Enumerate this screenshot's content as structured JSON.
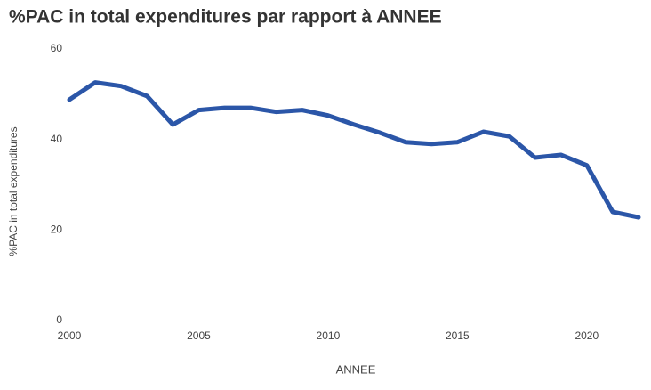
{
  "chart_data": {
    "type": "line",
    "title": "%PAC in total expenditures par rapport à ANNEE",
    "x_label": "ANNEE",
    "y_label": "%PAC in total expenditures",
    "x": [
      2000,
      2001,
      2002,
      2003,
      2004,
      2005,
      2006,
      2007,
      2008,
      2009,
      2010,
      2011,
      2012,
      2013,
      2014,
      2015,
      2016,
      2017,
      2018,
      2019,
      2020,
      2021,
      2022
    ],
    "series": [
      {
        "name": "%PAC in total expenditures",
        "color": "#2b56a8",
        "values": [
          48.8,
          52.6,
          51.8,
          49.6,
          43.3,
          46.5,
          47.0,
          47.0,
          46.1,
          46.5,
          45.3,
          43.3,
          41.5,
          39.4,
          39.0,
          39.4,
          41.7,
          40.7,
          36.0,
          36.6,
          34.3,
          24.0,
          22.8
        ]
      }
    ],
    "xlim": [
      2000,
      2022
    ],
    "xticks": [
      2000,
      2005,
      2010,
      2015,
      2020
    ],
    "ylim": [
      0,
      60
    ],
    "yticks": [
      0,
      20,
      40,
      60
    ],
    "grid": false
  }
}
